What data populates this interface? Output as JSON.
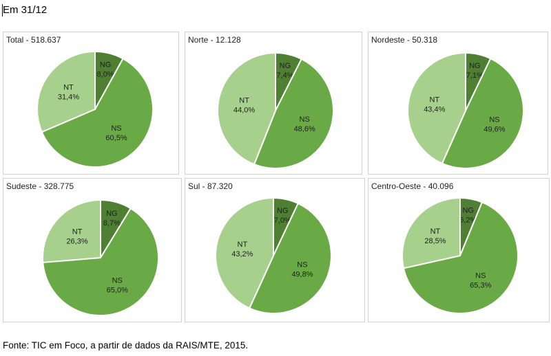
{
  "heading": "Em 31/12",
  "source": "Fonte: TIC em Foco, a partir de dados da RAIS/MTE, 2015.",
  "colors": {
    "NG": "#4e7f33",
    "NS": "#6aaa46",
    "NT": "#a8d08d"
  },
  "chart_data": [
    {
      "type": "pie",
      "title": "Total - 518.637",
      "categories": [
        "NG",
        "NS",
        "NT"
      ],
      "values": [
        8.0,
        60.5,
        31.4
      ],
      "value_labels": [
        "8,0%",
        "60,5%",
        "31,4%"
      ]
    },
    {
      "type": "pie",
      "title": "Norte - 12.128",
      "categories": [
        "NG",
        "NS",
        "NT"
      ],
      "values": [
        7.4,
        48.6,
        44.0
      ],
      "value_labels": [
        "7,4%",
        "48,6%",
        "44,0%"
      ]
    },
    {
      "type": "pie",
      "title": "Nordeste - 50.318",
      "categories": [
        "NG",
        "NS",
        "NT"
      ],
      "values": [
        7.1,
        49.6,
        43.4
      ],
      "value_labels": [
        "7,1%",
        "49,6%",
        "43,4%"
      ]
    },
    {
      "type": "pie",
      "title": "Sudeste - 328.775",
      "categories": [
        "NG",
        "NS",
        "NT"
      ],
      "values": [
        8.7,
        65.0,
        26.3
      ],
      "value_labels": [
        "8,7%",
        "65,0%",
        "26,3%"
      ]
    },
    {
      "type": "pie",
      "title": "Sul - 87.320",
      "categories": [
        "NG",
        "NS",
        "NT"
      ],
      "values": [
        7.0,
        49.8,
        43.2
      ],
      "value_labels": [
        "7,0%",
        "49,8%",
        "43,2%"
      ]
    },
    {
      "type": "pie",
      "title": "Centro-Oeste - 40.096",
      "categories": [
        "NG",
        "NS",
        "NT"
      ],
      "values": [
        6.2,
        65.3,
        28.5
      ],
      "value_labels": [
        "6,2%",
        "65,3%",
        "28,5%"
      ]
    }
  ]
}
